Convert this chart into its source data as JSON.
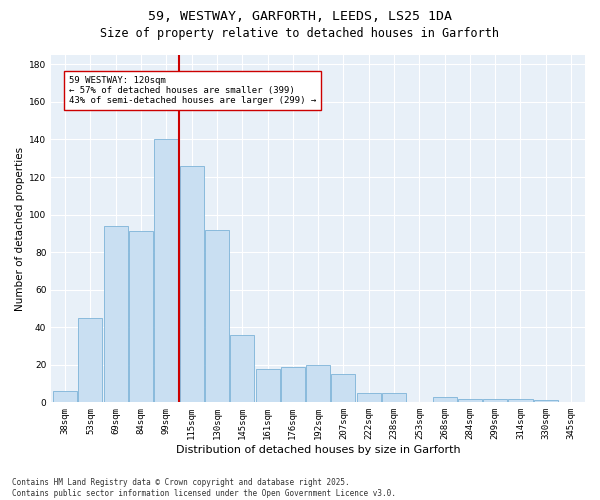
{
  "title1": "59, WESTWAY, GARFORTH, LEEDS, LS25 1DA",
  "title2": "Size of property relative to detached houses in Garforth",
  "xlabel": "Distribution of detached houses by size in Garforth",
  "ylabel": "Number of detached properties",
  "bar_color": "#c9dff2",
  "bar_edge_color": "#7db3d8",
  "categories": [
    "38sqm",
    "53sqm",
    "69sqm",
    "84sqm",
    "99sqm",
    "115sqm",
    "130sqm",
    "145sqm",
    "161sqm",
    "176sqm",
    "192sqm",
    "207sqm",
    "222sqm",
    "238sqm",
    "253sqm",
    "268sqm",
    "284sqm",
    "299sqm",
    "314sqm",
    "330sqm",
    "345sqm"
  ],
  "values": [
    6,
    45,
    94,
    91,
    140,
    126,
    92,
    36,
    18,
    19,
    20,
    15,
    5,
    5,
    0,
    3,
    2,
    2,
    2,
    1,
    0
  ],
  "vline_color": "#cc0000",
  "annotation_text": "59 WESTWAY: 120sqm\n← 57% of detached houses are smaller (399)\n43% of semi-detached houses are larger (299) →",
  "annotation_box_color": "#ffffff",
  "annotation_box_edgecolor": "#cc0000",
  "ylim": [
    0,
    185
  ],
  "yticks": [
    0,
    20,
    40,
    60,
    80,
    100,
    120,
    140,
    160,
    180
  ],
  "background_color": "#e8f0f8",
  "footer": "Contains HM Land Registry data © Crown copyright and database right 2025.\nContains public sector information licensed under the Open Government Licence v3.0.",
  "title_fontsize": 9.5,
  "subtitle_fontsize": 8.5,
  "tick_fontsize": 6.5,
  "ylabel_fontsize": 7.5,
  "xlabel_fontsize": 8,
  "annotation_fontsize": 6.5,
  "footer_fontsize": 5.5
}
